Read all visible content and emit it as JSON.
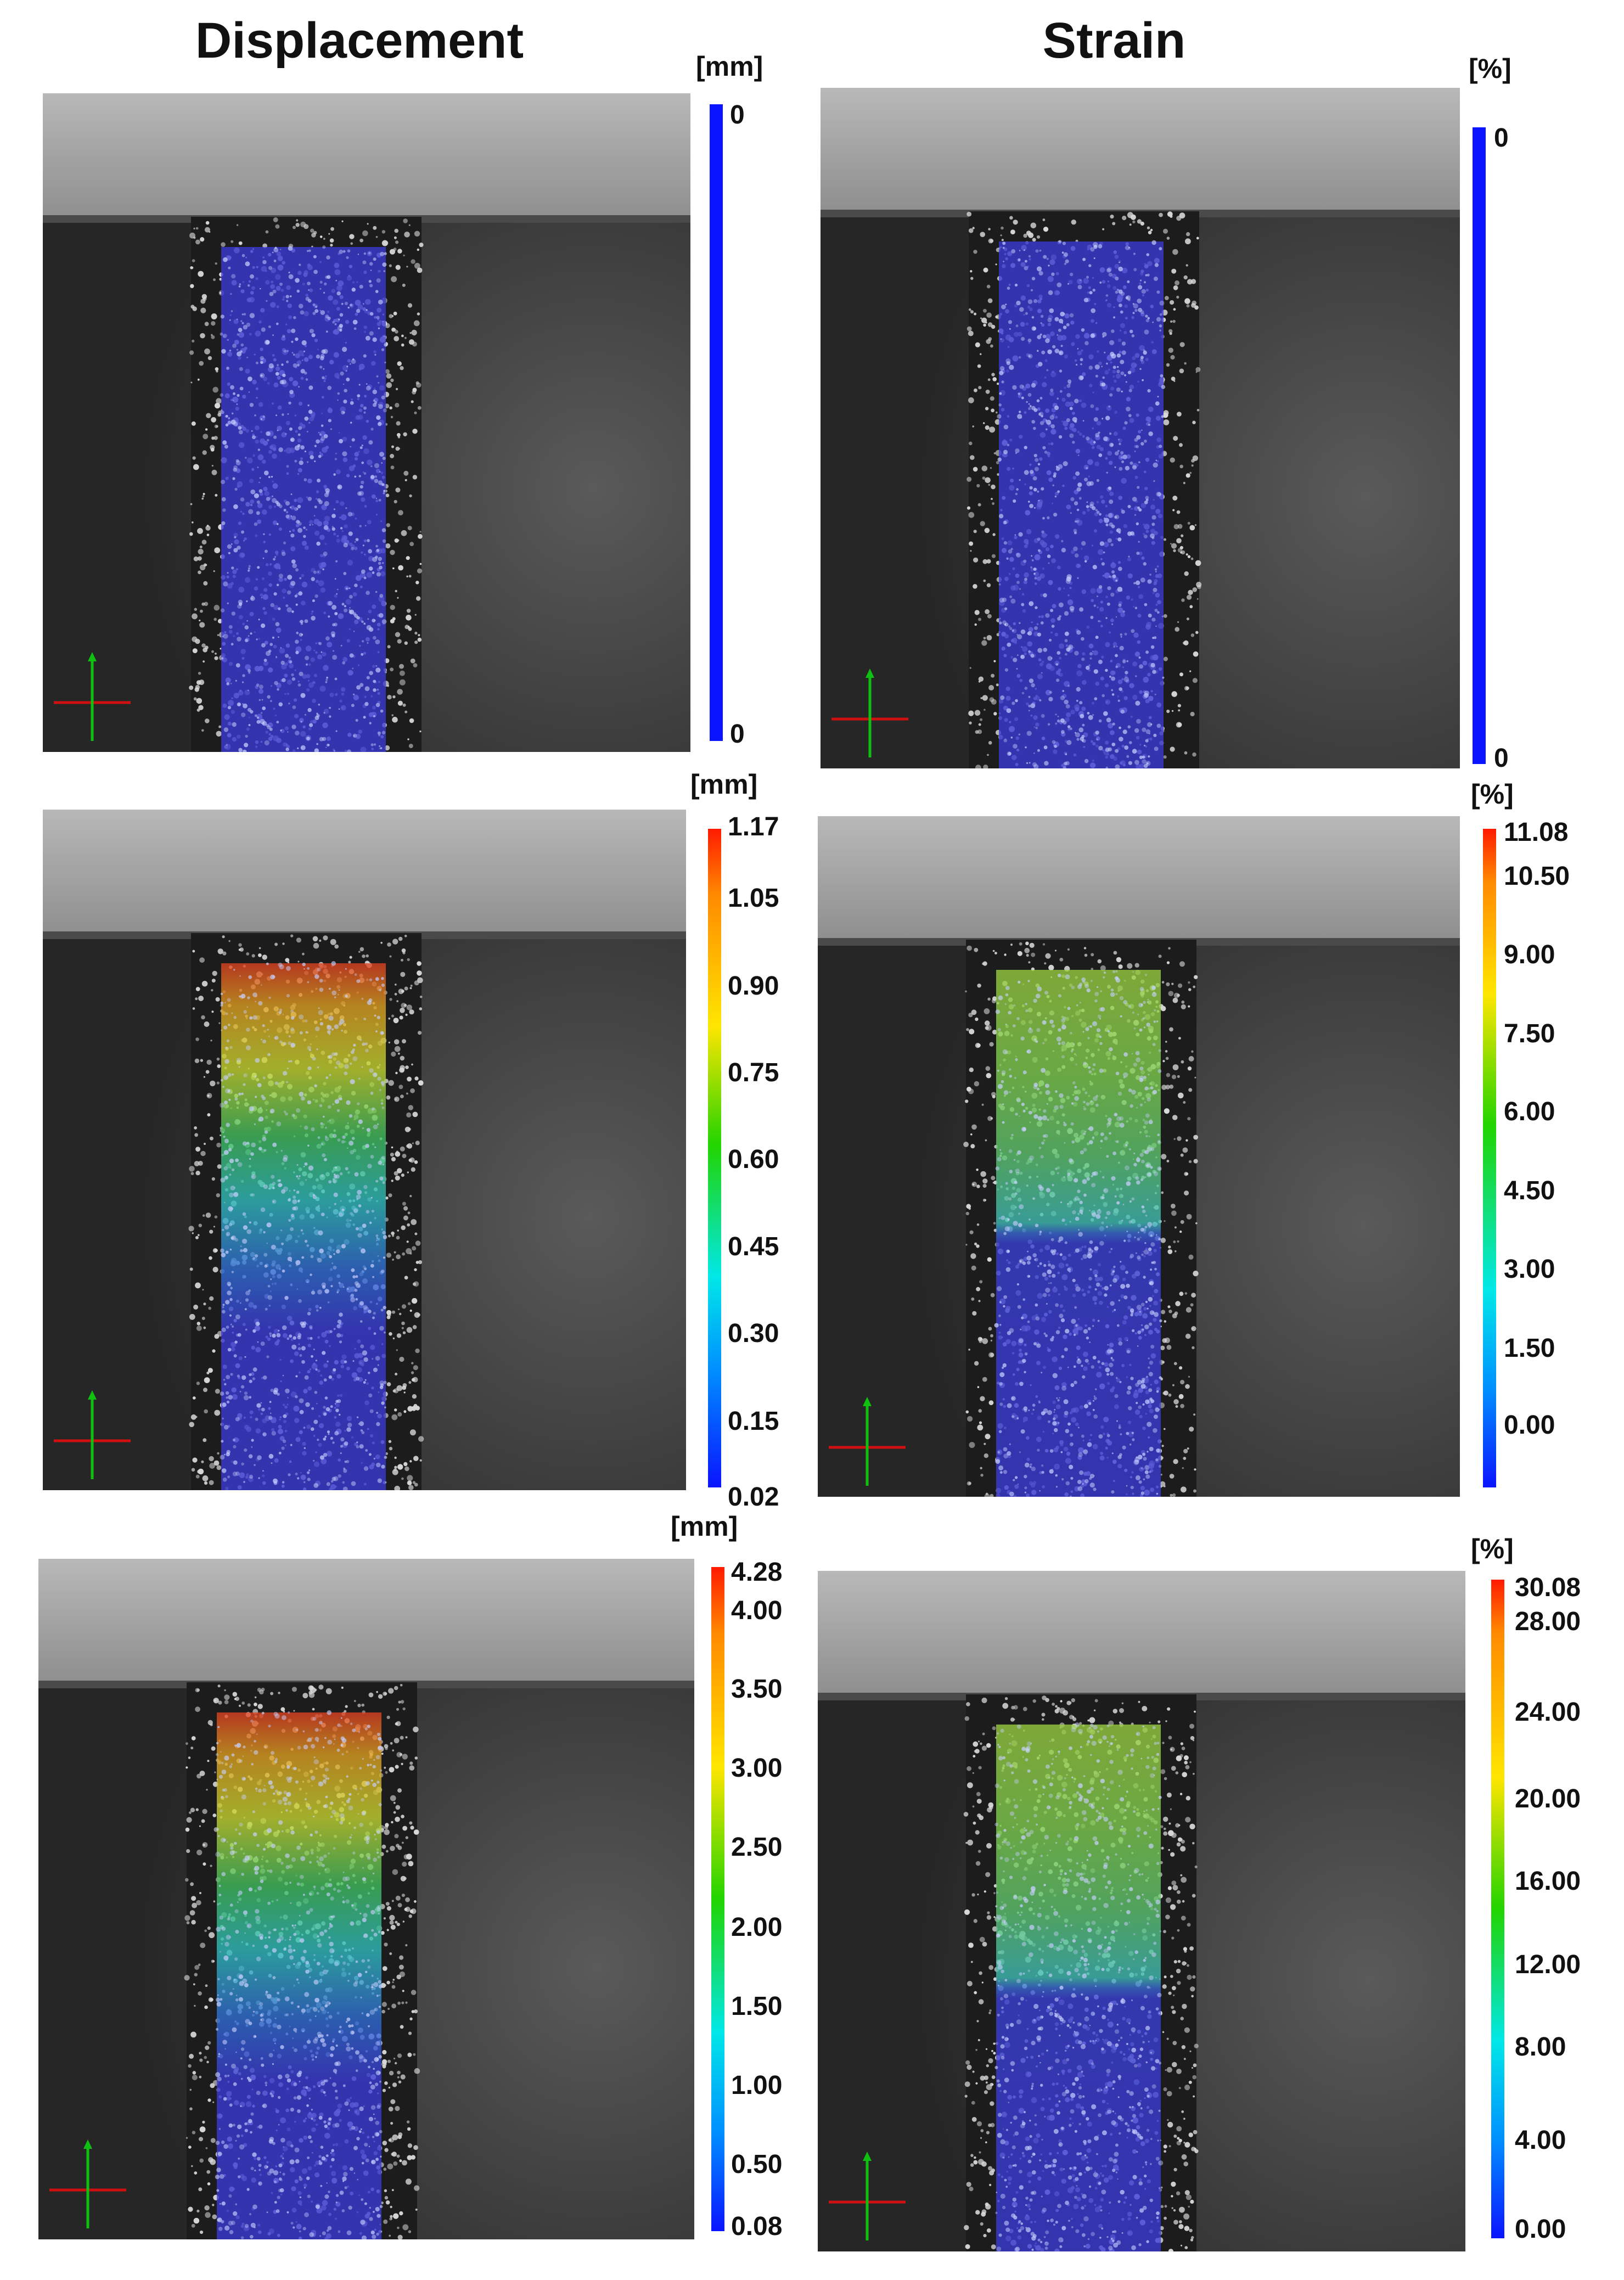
{
  "titles": {
    "displacement": "Displacement",
    "strain": "Strain"
  },
  "units": {
    "displacement": "[mm]",
    "strain": "[%]"
  },
  "colors": {
    "low": "#0a14ff",
    "high": "#ff1a00"
  },
  "panels": [
    {
      "id": "disp-1",
      "quantity": "displacement",
      "field": "uniform",
      "scale": {
        "unit": "[mm]",
        "ticks": [
          "0",
          "0"
        ]
      }
    },
    {
      "id": "strain-1",
      "quantity": "strain",
      "field": "uniform",
      "scale": {
        "unit": "[%]",
        "ticks": [
          "0",
          "0"
        ]
      }
    },
    {
      "id": "disp-2",
      "quantity": "displacement",
      "field": "gradient",
      "scale": {
        "unit": "[mm]",
        "ticks": [
          "1.17",
          "1.05",
          "0.90",
          "0.75",
          "0.60",
          "0.45",
          "0.30",
          "0.15",
          "0.02"
        ]
      }
    },
    {
      "id": "strain-2",
      "quantity": "strain",
      "field": "banded",
      "scale": {
        "unit": "[%]",
        "ticks": [
          "11.08",
          "10.50",
          "9.00",
          "7.50",
          "6.00",
          "4.50",
          "3.00",
          "1.50",
          "0.00"
        ]
      }
    },
    {
      "id": "disp-3",
      "quantity": "displacement",
      "field": "gradient",
      "scale": {
        "unit": "[mm]",
        "ticks": [
          "4.28",
          "4.00",
          "3.50",
          "3.00",
          "2.50",
          "2.00",
          "1.50",
          "1.00",
          "0.50",
          "0.08"
        ]
      }
    },
    {
      "id": "strain-3",
      "quantity": "strain",
      "field": "banded",
      "scale": {
        "unit": "[%]",
        "ticks": [
          "30.08",
          "28.00",
          "24.00",
          "20.00",
          "16.00",
          "12.00",
          "8.00",
          "4.00",
          "0.00"
        ]
      }
    }
  ]
}
